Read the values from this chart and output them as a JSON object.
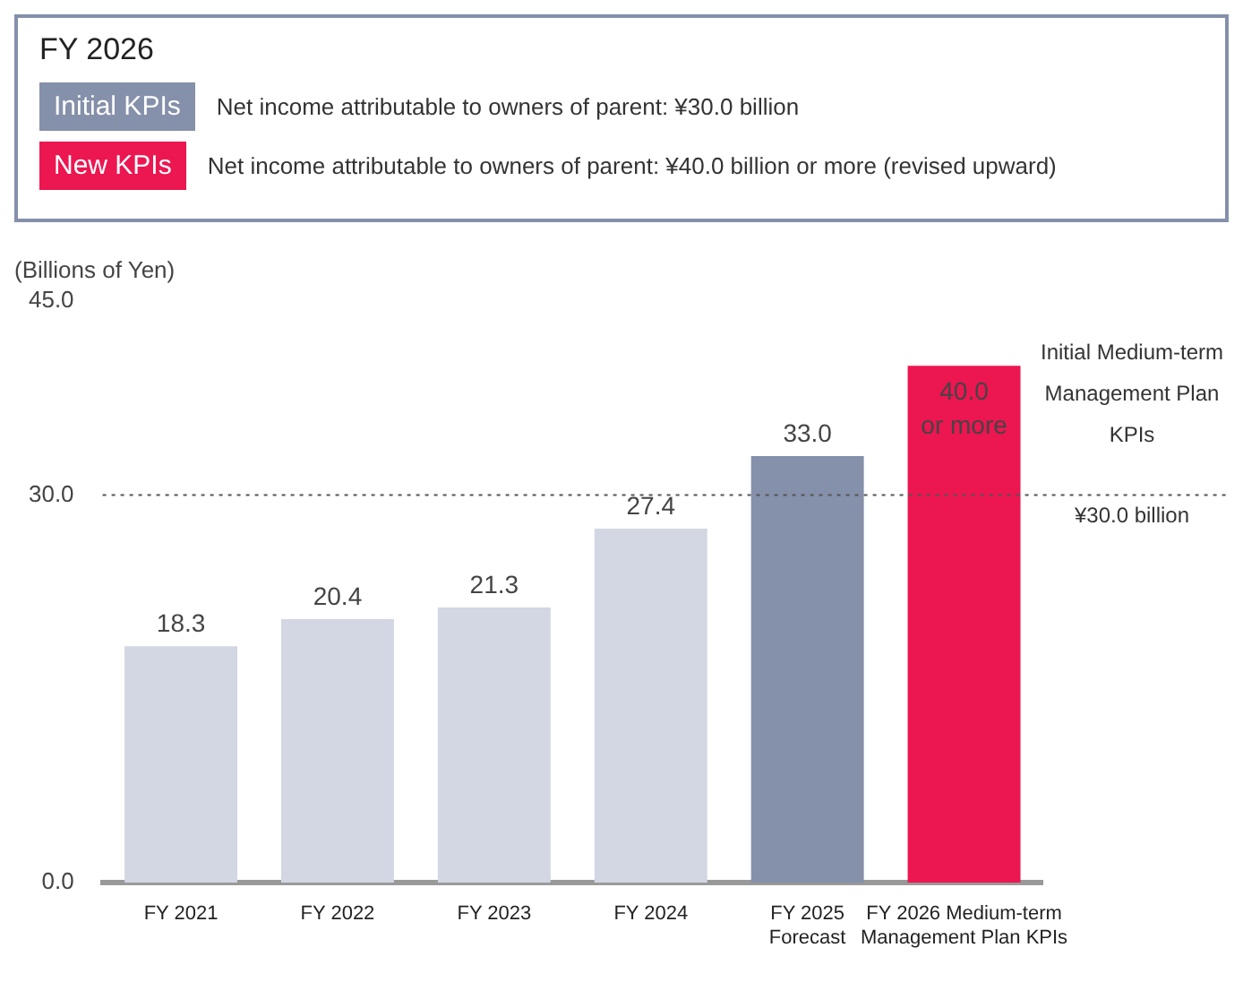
{
  "chart_data": {
    "type": "bar",
    "title": "FY 2026",
    "annotations": [
      "Initial KPIs",
      "Net income attributable to owners of parent: ¥30.0 billion",
      "New KPIs",
      "Net income attributable to owners of parent: ¥40.0 billion or more (revised upward)"
    ],
    "ylabel": "(Billions of Yen)",
    "categories": [
      "FY 2021",
      "FY 2022",
      "FY 2023",
      "FY 2024",
      "FY 2025\nForecast",
      "FY 2026 Medium-term\nManagement Plan KPIs"
    ],
    "values": [
      18.3,
      20.4,
      21.3,
      27.4,
      33.0,
      40.0
    ],
    "value_labels": [
      "18.3",
      "20.4",
      "21.3",
      "27.4",
      "33.0",
      "40.0\nor more"
    ],
    "colors": [
      "#d3d6e3",
      "#d3d6e3",
      "#d3d6e3",
      "#d3d6e3",
      "#8590aa",
      "#ec1651"
    ],
    "ylim": [
      0,
      45
    ],
    "yticks": [
      {
        "value": 0,
        "label": "0.0"
      },
      {
        "value": 30,
        "label": "30.0"
      },
      {
        "value": 45,
        "label": "45.0"
      }
    ],
    "ref_lines": [
      {
        "axis": "y",
        "value": 30,
        "label": "Initial Medium-term\nManagement Plan\nKPIs\n¥30.0 billion",
        "color": "#555555",
        "line_style": "dotted"
      }
    ],
    "grid": false,
    "legend": false
  }
}
